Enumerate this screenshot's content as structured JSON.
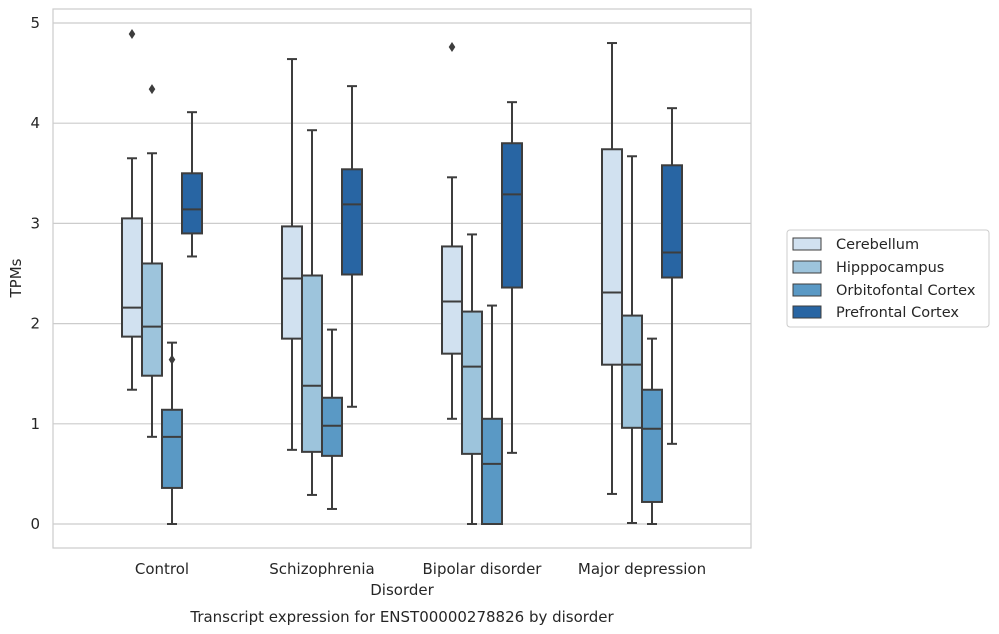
{
  "chart_data": {
    "type": "box",
    "title": "Transcript expression for ENST00000278826 by disorder",
    "xlabel": "Disorder",
    "ylabel": "TPMs",
    "categories": [
      "Control",
      "Schizophrenia",
      "Bipolar disorder",
      "Major depression"
    ],
    "ylim": [
      -0.24,
      5.15
    ],
    "yticks": [
      0,
      1,
      2,
      3,
      4,
      5
    ],
    "grid": "horizontal",
    "legend_position": "right",
    "series": [
      {
        "name": "Cerebellum",
        "color": "#d1e1f0",
        "boxes": [
          {
            "whislo": 1.34,
            "q1": 1.87,
            "med": 2.16,
            "q3": 3.05,
            "whishi": 3.65,
            "fliers": [
              4.89
            ]
          },
          {
            "whislo": 0.74,
            "q1": 1.85,
            "med": 2.45,
            "q3": 2.97,
            "whishi": 4.64,
            "fliers": []
          },
          {
            "whislo": 1.05,
            "q1": 1.7,
            "med": 2.22,
            "q3": 2.77,
            "whishi": 3.46,
            "fliers": [
              4.76
            ]
          },
          {
            "whislo": 0.3,
            "q1": 1.59,
            "med": 2.31,
            "q3": 3.74,
            "whishi": 4.8,
            "fliers": []
          }
        ]
      },
      {
        "name": "Hipppocampus",
        "color": "#9dc4dc",
        "boxes": [
          {
            "whislo": 0.87,
            "q1": 1.48,
            "med": 1.97,
            "q3": 2.6,
            "whishi": 3.7,
            "fliers": [
              4.34
            ]
          },
          {
            "whislo": 0.29,
            "q1": 0.72,
            "med": 1.38,
            "q3": 2.48,
            "whishi": 3.93,
            "fliers": []
          },
          {
            "whislo": 0.0,
            "q1": 0.7,
            "med": 1.57,
            "q3": 2.12,
            "whishi": 2.89,
            "fliers": []
          },
          {
            "whislo": 0.01,
            "q1": 0.96,
            "med": 1.59,
            "q3": 2.08,
            "whishi": 3.67,
            "fliers": []
          }
        ]
      },
      {
        "name": "Orbitofontal Cortex",
        "color": "#5a99c5",
        "boxes": [
          {
            "whislo": 0.0,
            "q1": 0.36,
            "med": 0.87,
            "q3": 1.14,
            "whishi": 1.81,
            "fliers": [
              1.64
            ]
          },
          {
            "whislo": 0.15,
            "q1": 0.68,
            "med": 0.98,
            "q3": 1.26,
            "whishi": 1.94,
            "fliers": []
          },
          {
            "whislo": 0.0,
            "q1": 0.0,
            "med": 0.6,
            "q3": 1.05,
            "whishi": 2.18,
            "fliers": []
          },
          {
            "whislo": 0.0,
            "q1": 0.22,
            "med": 0.95,
            "q3": 1.34,
            "whishi": 1.85,
            "fliers": []
          }
        ]
      },
      {
        "name": "Prefrontal Cortex",
        "color": "#2865a3",
        "boxes": [
          {
            "whislo": 2.67,
            "q1": 2.9,
            "med": 3.14,
            "q3": 3.5,
            "whishi": 4.11,
            "fliers": []
          },
          {
            "whislo": 1.17,
            "q1": 2.49,
            "med": 3.19,
            "q3": 3.54,
            "whishi": 4.37,
            "fliers": []
          },
          {
            "whislo": 0.71,
            "q1": 2.36,
            "med": 3.29,
            "q3": 3.8,
            "whishi": 4.21,
            "fliers": []
          },
          {
            "whislo": 0.8,
            "q1": 2.46,
            "med": 2.71,
            "q3": 3.58,
            "whishi": 4.15,
            "fliers": []
          }
        ]
      }
    ],
    "colors": {
      "outline": "#3d3d3d",
      "grid": "#cccccc",
      "frame": "#cccccc",
      "text": "#262626"
    }
  }
}
